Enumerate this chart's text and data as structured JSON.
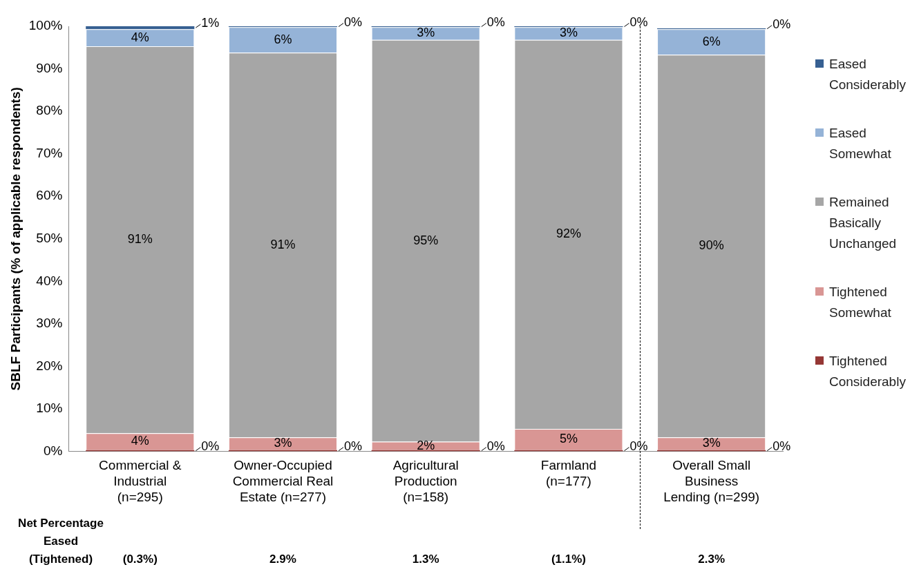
{
  "chart_data": {
    "type": "bar",
    "stacked": true,
    "ylabel": "SBLF Participants (% of applicable respondents)",
    "categories": [
      "Commercial & Industrial (n=295)",
      "Owner-Occupied Commercial Real Estate (n=277)",
      "Agricultural Production (n=158)",
      "Farmland (n=177)",
      "Overall Small Business Lending (n=299)"
    ],
    "series": [
      {
        "name": "Tightened Considerably",
        "color": "#953735",
        "values": [
          0.3,
          0.3,
          0.3,
          0.3,
          0.3
        ],
        "value_labels": [
          "0%",
          "0%",
          "0%",
          "0%",
          "0%"
        ]
      },
      {
        "name": "Tightened Somewhat",
        "color": "#d99694",
        "values": [
          4,
          3,
          2,
          5,
          3
        ],
        "value_labels": [
          "4%",
          "3%",
          "2%",
          "5%",
          "3%"
        ]
      },
      {
        "name": "Remained Basically Unchanged",
        "color": "#a6a6a6",
        "values": [
          91,
          90.5,
          94.5,
          91.5,
          90
        ],
        "value_labels": [
          "91%",
          "91%",
          "95%",
          "92%",
          "90%"
        ]
      },
      {
        "name": "Eased Somewhat",
        "color": "#95b3d7",
        "values": [
          4,
          6,
          3,
          3,
          6
        ],
        "value_labels": [
          "4%",
          "6%",
          "3%",
          "3%",
          "6%"
        ]
      },
      {
        "name": "Eased Considerably",
        "color": "#376092",
        "values": [
          0.7,
          0.2,
          0.2,
          0.2,
          0.2
        ],
        "value_labels": [
          "1%",
          "0%",
          "0%",
          "0%",
          "0%"
        ]
      }
    ],
    "ylim": [
      0,
      100
    ],
    "yticks": [
      {
        "value": 0,
        "label": "0%"
      },
      {
        "value": 10,
        "label": "10%"
      },
      {
        "value": 20,
        "label": "20%"
      },
      {
        "value": 30,
        "label": "30%"
      },
      {
        "value": 40,
        "label": "40%"
      },
      {
        "value": 50,
        "label": "50%"
      },
      {
        "value": 60,
        "label": "60%"
      },
      {
        "value": 70,
        "label": "70%"
      },
      {
        "value": 80,
        "label": "80%"
      },
      {
        "value": 90,
        "label": "90%"
      },
      {
        "value": 100,
        "label": "100%"
      }
    ],
    "grid": false,
    "legend": "right",
    "annotations": [
      "Net Percentage Eased (Tightened)",
      "(0.3%)",
      "2.9%",
      "1.3%",
      "(1.1%)",
      "2.3%"
    ]
  }
}
